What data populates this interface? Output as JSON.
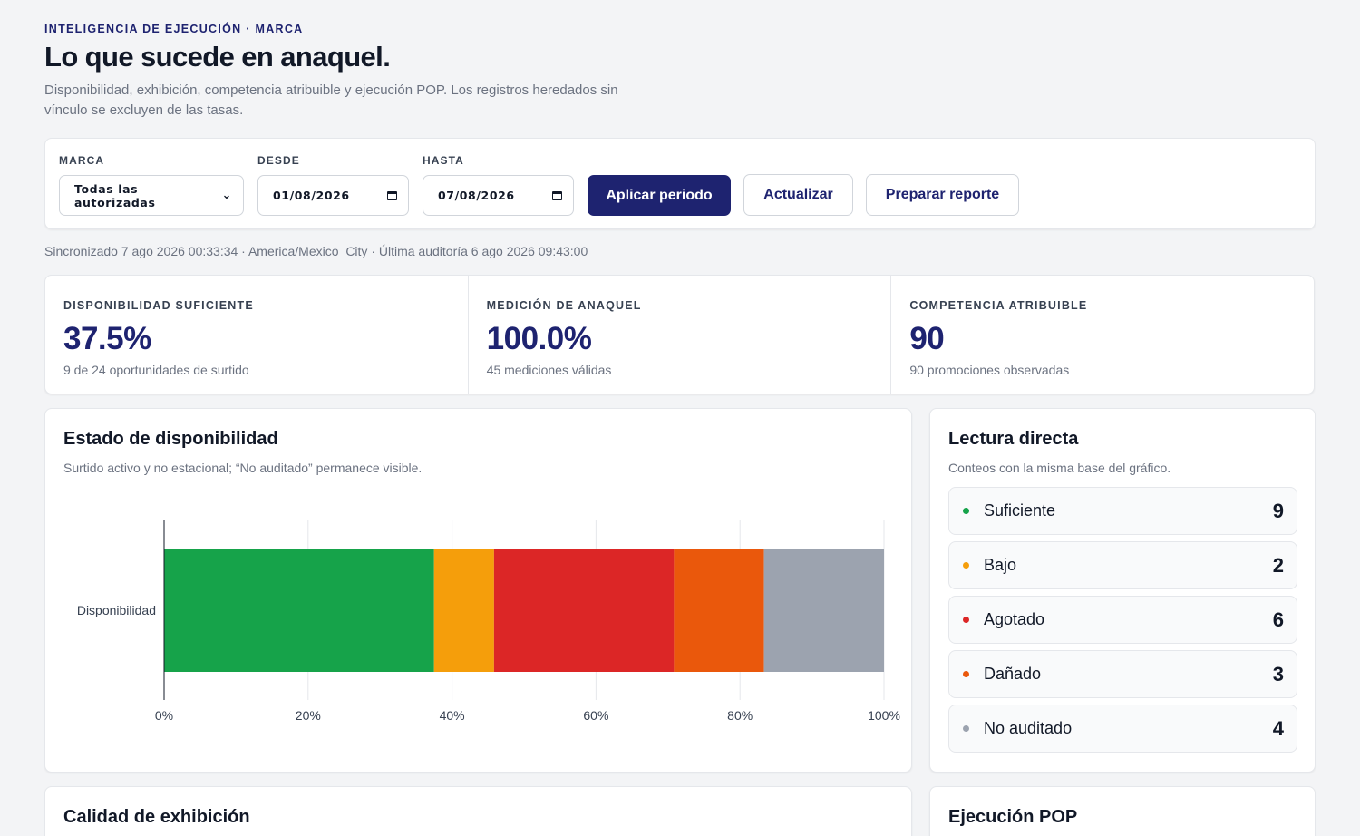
{
  "header": {
    "eyebrow": "INTELIGENCIA DE EJECUCIÓN · MARCA",
    "title": "Lo que sucede en anaquel.",
    "subtitle": "Disponibilidad, exhibición, competencia atribuible y ejecución POP. Los registros heredados sin vínculo se excluyen de las tasas."
  },
  "filters": {
    "brand_label": "MARCA",
    "brand_value": "Todas las autorizadas",
    "from_label": "DESDE",
    "from_value": "01/08/2026",
    "to_label": "HASTA",
    "to_value": "07/08/2026",
    "apply_label": "Aplicar periodo",
    "refresh_label": "Actualizar",
    "report_label": "Preparar reporte"
  },
  "sync": {
    "text": "Sincronizado 7 ago 2026 00:33:34 · America/Mexico_City · Última auditoría 6 ago 2026 09:43:00"
  },
  "kpis": [
    {
      "label": "DISPONIBILIDAD SUFICIENTE",
      "value": "37.5%",
      "note": "9 de 24 oportunidades de surtido"
    },
    {
      "label": "MEDICIÓN DE ANAQUEL",
      "value": "100.0%",
      "note": "45 mediciones válidas"
    },
    {
      "label": "COMPETENCIA ATRIBUIBLE",
      "value": "90",
      "note": "90 promociones observadas"
    }
  ],
  "availability_panel": {
    "title": "Estado de disponibilidad",
    "subtitle": "Surtido activo y no estacional; “No auditado” permanece visible."
  },
  "chart_data": {
    "type": "bar",
    "orientation": "horizontal",
    "stacked": true,
    "categories": [
      "Disponibilidad"
    ],
    "series": [
      {
        "name": "Suficiente",
        "values": [
          37.5
        ],
        "color": "#16a34a"
      },
      {
        "name": "Bajo",
        "values": [
          8.33
        ],
        "color": "#f59e0b"
      },
      {
        "name": "Agotado",
        "values": [
          25.0
        ],
        "color": "#dc2626"
      },
      {
        "name": "Dañado",
        "values": [
          12.5
        ],
        "color": "#ea580c"
      },
      {
        "name": "No auditado",
        "values": [
          16.67
        ],
        "color": "#9ca3af"
      }
    ],
    "x_ticks": [
      "0%",
      "20%",
      "40%",
      "60%",
      "80%",
      "100%"
    ],
    "xlim": [
      0,
      100
    ],
    "grid": true,
    "title": "",
    "xlabel": "",
    "ylabel": ""
  },
  "direct_panel": {
    "title": "Lectura directa",
    "subtitle": "Conteos con la misma base del gráfico.",
    "items": [
      {
        "label": "Suficiente",
        "count": "9",
        "color": "#16a34a"
      },
      {
        "label": "Bajo",
        "count": "2",
        "color": "#f59e0b"
      },
      {
        "label": "Agotado",
        "count": "6",
        "color": "#dc2626"
      },
      {
        "label": "Dañado",
        "count": "3",
        "color": "#ea580c"
      },
      {
        "label": "No auditado",
        "count": "4",
        "color": "#9ca3af"
      }
    ]
  },
  "bottom": {
    "left_title": "Calidad de exhibición",
    "right_title": "Ejecución POP"
  }
}
